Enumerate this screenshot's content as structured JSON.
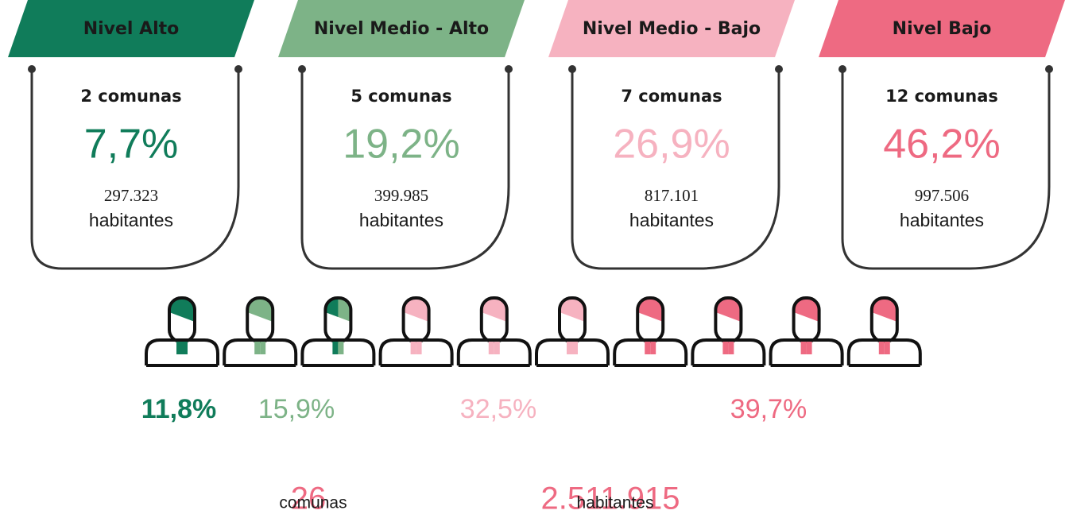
{
  "cards": [
    {
      "title": "Nivel Alto",
      "comunas": "2 comunas",
      "percent": "7,7%",
      "population": "297.323",
      "unit": "habitantes",
      "color": "#107c5a"
    },
    {
      "title": "Nivel Medio - Alto",
      "comunas": "5 comunas",
      "percent": "19,2%",
      "population": "399.985",
      "unit": "habitantes",
      "color": "#7db387"
    },
    {
      "title": "Nivel Medio - Bajo",
      "comunas": "7 comunas",
      "percent": "26,9%",
      "population": "817.101",
      "unit": "habitantes",
      "color": "#f6b2c0"
    },
    {
      "title": "Nivel Bajo",
      "comunas": "12 comunas",
      "percent": "46,2%",
      "population": "997.506",
      "unit": "habitantes",
      "color": "#ee6a82"
    }
  ],
  "population_shares": [
    "11,8%",
    "15,9%",
    "32,5%",
    "39,7%"
  ],
  "totals": {
    "comunas_value": "26",
    "comunas_label": "comunas",
    "habitantes_value": "2.511.915",
    "habitantes_label": "habitantes"
  }
}
